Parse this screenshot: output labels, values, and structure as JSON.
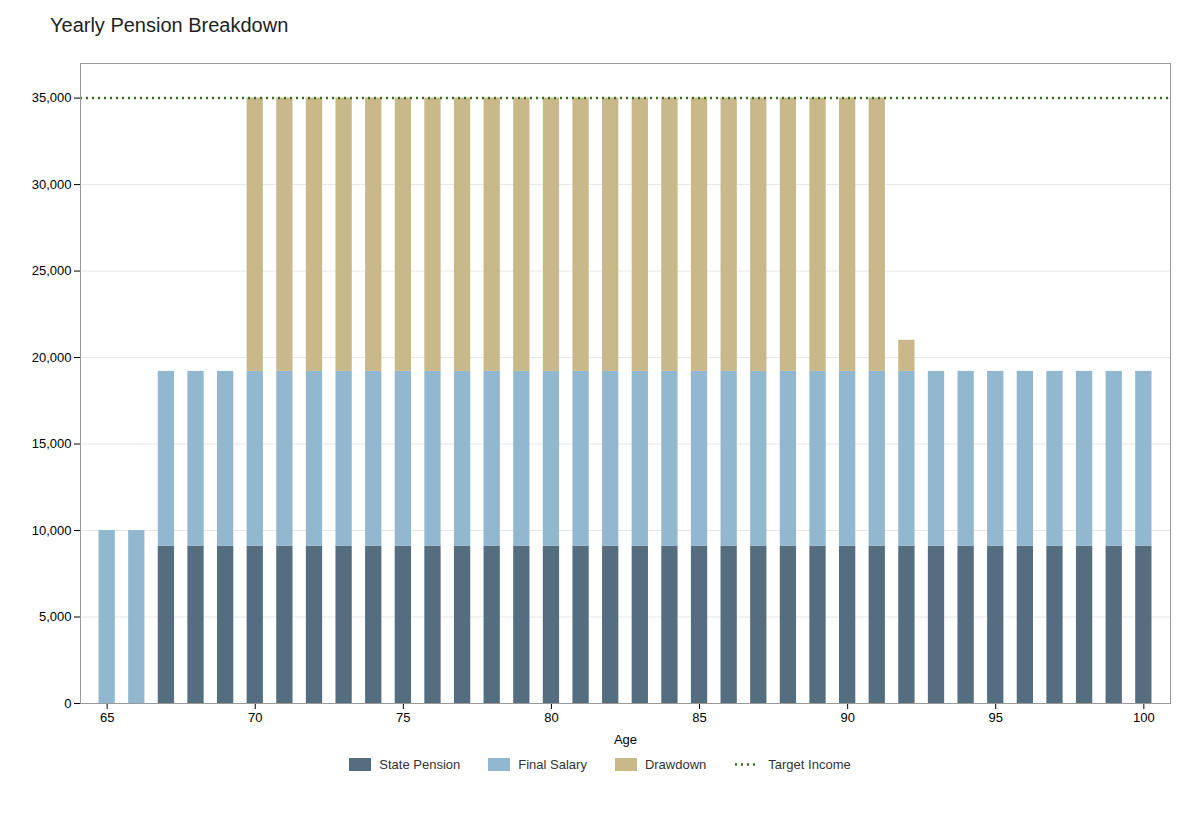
{
  "chart_data": {
    "type": "bar",
    "stacked": true,
    "title": "Yearly Pension Breakdown",
    "xlabel": "Age",
    "x": [
      65,
      66,
      67,
      68,
      69,
      70,
      71,
      72,
      73,
      74,
      75,
      76,
      77,
      78,
      79,
      80,
      81,
      82,
      83,
      84,
      85,
      86,
      87,
      88,
      89,
      90,
      91,
      92,
      93,
      94,
      95,
      96,
      97,
      98,
      99,
      100
    ],
    "series": [
      {
        "name": "State Pension",
        "color": "#546e7f",
        "values": [
          0,
          0,
          9100,
          9100,
          9100,
          9100,
          9100,
          9100,
          9100,
          9100,
          9100,
          9100,
          9100,
          9100,
          9100,
          9100,
          9100,
          9100,
          9100,
          9100,
          9100,
          9100,
          9100,
          9100,
          9100,
          9100,
          9100,
          9100,
          9100,
          9100,
          9100,
          9100,
          9100,
          9100,
          9100,
          9100
        ]
      },
      {
        "name": "Final Salary",
        "color": "#92b8d0",
        "values": [
          10000,
          10000,
          10100,
          10100,
          10100,
          10100,
          10100,
          10100,
          10100,
          10100,
          10100,
          10100,
          10100,
          10100,
          10100,
          10100,
          10100,
          10100,
          10100,
          10100,
          10100,
          10100,
          10100,
          10100,
          10100,
          10100,
          10100,
          10100,
          10100,
          10100,
          10100,
          10100,
          10100,
          10100,
          10100,
          10100
        ]
      },
      {
        "name": "Drawdown",
        "color": "#c8b88a",
        "values": [
          0,
          0,
          0,
          0,
          0,
          15800,
          15800,
          15800,
          15800,
          15800,
          15800,
          15800,
          15800,
          15800,
          15800,
          15800,
          15800,
          15800,
          15800,
          15800,
          15800,
          15800,
          15800,
          15800,
          15800,
          15800,
          15800,
          1800,
          0,
          0,
          0,
          0,
          0,
          0,
          0,
          0
        ]
      }
    ],
    "reference_line": {
      "name": "Target Income",
      "value": 35000,
      "color": "#3a6e1f",
      "line_style": "dotted"
    },
    "xlim": [
      64.1,
      100.9
    ],
    "xticks": [
      65,
      70,
      75,
      80,
      85,
      90,
      95,
      100
    ],
    "ylim": [
      0,
      37000
    ],
    "yticks": [
      0,
      {
        "value": 5000,
        "label": "5,000"
      },
      {
        "value": 10000,
        "label": "10,000"
      },
      {
        "value": 15000,
        "label": "15,000"
      },
      {
        "value": 20000,
        "label": "20,000"
      },
      {
        "value": 25000,
        "label": "25,000"
      },
      {
        "value": 30000,
        "label": "30,000"
      },
      {
        "value": 35000,
        "label": "35,000"
      }
    ],
    "grid": true,
    "legend": "bottom"
  }
}
